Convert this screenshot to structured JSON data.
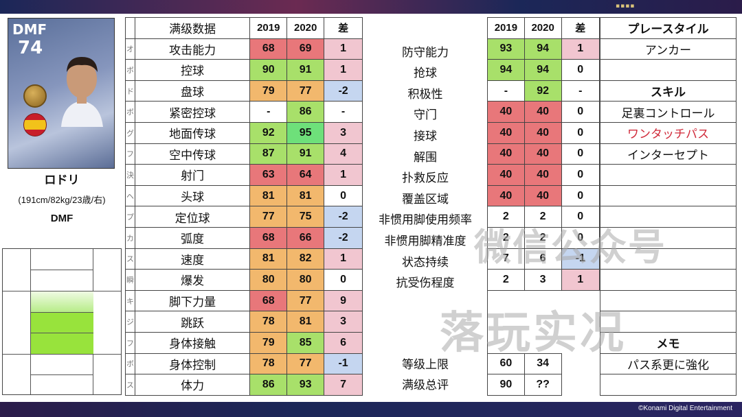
{
  "watermark": {
    "line1": "微信公众号",
    "line2": "落玩实况"
  },
  "copyright": "©Konami Digital Entertainment",
  "player": {
    "card_position": "DMF",
    "card_overall": "74",
    "name": "ロドリ",
    "info": "(191cm/82kg/23歳/右)",
    "position": "DMF",
    "icons": {
      "coin": "medal-icon",
      "flag": "spain-flag-icon",
      "portrait": "player-portrait"
    }
  },
  "left_table": {
    "headers": {
      "label": "满级数据",
      "y2019": "2019",
      "y2020": "2020",
      "diff": "差"
    },
    "rows": [
      {
        "label": "攻击能力",
        "a": "68",
        "b": "69",
        "d": "1",
        "ca": "red",
        "cb": "red",
        "cd": "pink"
      },
      {
        "label": "控球",
        "a": "90",
        "b": "91",
        "d": "1",
        "ca": "green",
        "cb": "green",
        "cd": "pink"
      },
      {
        "label": "盘球",
        "a": "79",
        "b": "77",
        "d": "-2",
        "ca": "orange",
        "cb": "orange",
        "cd": "blue"
      },
      {
        "label": "紧密控球",
        "a": "-",
        "b": "86",
        "d": "-",
        "ca": "white",
        "cb": "green",
        "cd": "white"
      },
      {
        "label": "地面传球",
        "a": "92",
        "b": "95",
        "d": "3",
        "ca": "green",
        "cb": "green2",
        "cd": "pink"
      },
      {
        "label": "空中传球",
        "a": "87",
        "b": "91",
        "d": "4",
        "ca": "green",
        "cb": "green",
        "cd": "pink"
      },
      {
        "label": "射门",
        "a": "63",
        "b": "64",
        "d": "1",
        "ca": "red",
        "cb": "red",
        "cd": "pink"
      },
      {
        "label": "头球",
        "a": "81",
        "b": "81",
        "d": "0",
        "ca": "orange",
        "cb": "orange",
        "cd": "white"
      },
      {
        "label": "定位球",
        "a": "77",
        "b": "75",
        "d": "-2",
        "ca": "orange",
        "cb": "orange",
        "cd": "blue"
      },
      {
        "label": "弧度",
        "a": "68",
        "b": "66",
        "d": "-2",
        "ca": "red",
        "cb": "red",
        "cd": "blue"
      },
      {
        "label": "速度",
        "a": "81",
        "b": "82",
        "d": "1",
        "ca": "orange",
        "cb": "orange",
        "cd": "pink"
      },
      {
        "label": "爆发",
        "a": "80",
        "b": "80",
        "d": "0",
        "ca": "orange",
        "cb": "orange",
        "cd": "white"
      },
      {
        "label": "脚下力量",
        "a": "68",
        "b": "77",
        "d": "9",
        "ca": "red",
        "cb": "orange",
        "cd": "pink"
      },
      {
        "label": "跳跃",
        "a": "78",
        "b": "81",
        "d": "3",
        "ca": "orange",
        "cb": "orange",
        "cd": "pink"
      },
      {
        "label": "身体接触",
        "a": "79",
        "b": "85",
        "d": "6",
        "ca": "orange",
        "cb": "green",
        "cd": "pink"
      },
      {
        "label": "身体控制",
        "a": "78",
        "b": "77",
        "d": "-1",
        "ca": "orange",
        "cb": "orange",
        "cd": "blue"
      },
      {
        "label": "体力",
        "a": "86",
        "b": "93",
        "d": "7",
        "ca": "green",
        "cb": "green",
        "cd": "pink"
      }
    ],
    "edge_glyphs": [
      "オ",
      "ボ",
      "ド",
      "ボ",
      "グ",
      "フ",
      "決",
      "ヘ",
      "プ",
      "カ",
      "ス",
      "瞬",
      "キ",
      "ジ",
      "フ",
      "ボ",
      "ス"
    ]
  },
  "mid_labels": {
    "top": [
      "防守能力",
      "抢球",
      "积极性",
      "守门",
      "接球",
      "解围",
      "扑救反应",
      "覆盖区域",
      "非惯用脚使用频率",
      "非惯用脚精准度",
      "状态持续",
      "抗受伤程度"
    ],
    "bottom": [
      "等级上限",
      "满级总评"
    ]
  },
  "right_table": {
    "headers": {
      "y2019": "2019",
      "y2020": "2020",
      "diff": "差"
    },
    "rows": [
      {
        "a": "93",
        "b": "94",
        "d": "1",
        "ca": "green",
        "cb": "green",
        "cd": "pink"
      },
      {
        "a": "94",
        "b": "94",
        "d": "0",
        "ca": "green",
        "cb": "green",
        "cd": "white"
      },
      {
        "a": "-",
        "b": "92",
        "d": "-",
        "ca": "white",
        "cb": "green",
        "cd": "white"
      },
      {
        "a": "40",
        "b": "40",
        "d": "0",
        "ca": "red",
        "cb": "red",
        "cd": "white"
      },
      {
        "a": "40",
        "b": "40",
        "d": "0",
        "ca": "red",
        "cb": "red",
        "cd": "white"
      },
      {
        "a": "40",
        "b": "40",
        "d": "0",
        "ca": "red",
        "cb": "red",
        "cd": "white"
      },
      {
        "a": "40",
        "b": "40",
        "d": "0",
        "ca": "red",
        "cb": "red",
        "cd": "white"
      },
      {
        "a": "40",
        "b": "40",
        "d": "0",
        "ca": "red",
        "cb": "red",
        "cd": "white"
      },
      {
        "a": "2",
        "b": "2",
        "d": "0",
        "ca": "white",
        "cb": "white",
        "cd": "white"
      },
      {
        "a": "2",
        "b": "2",
        "d": "0",
        "ca": "white",
        "cb": "white",
        "cd": "white"
      },
      {
        "a": "7",
        "b": "6",
        "d": "-1",
        "ca": "white",
        "cb": "white",
        "cd": "blue"
      },
      {
        "a": "2",
        "b": "3",
        "d": "1",
        "ca": "white",
        "cb": "white",
        "cd": "pink"
      }
    ],
    "bottom_rows": [
      {
        "a": "60",
        "b": "34"
      },
      {
        "a": "90",
        "b": "??"
      }
    ]
  },
  "side_column": {
    "playstyle_header": "プレースタイル",
    "playstyle": "アンカー",
    "skills_header": "スキル",
    "skills": [
      "足裏コントロール",
      "ワンタッチパス",
      "インターセプト"
    ],
    "memo_header": "メモ",
    "memo": "パス系更に強化"
  },
  "colors": {
    "red": "#e8777a",
    "orange": "#f2b86d",
    "green": "#a8e06a",
    "bright_green": "#6ee07a",
    "pink": "#f1c6d0",
    "blue": "#c5d6f0",
    "skill_highlight": "#d02a3a",
    "frame": "#2a3a78"
  }
}
